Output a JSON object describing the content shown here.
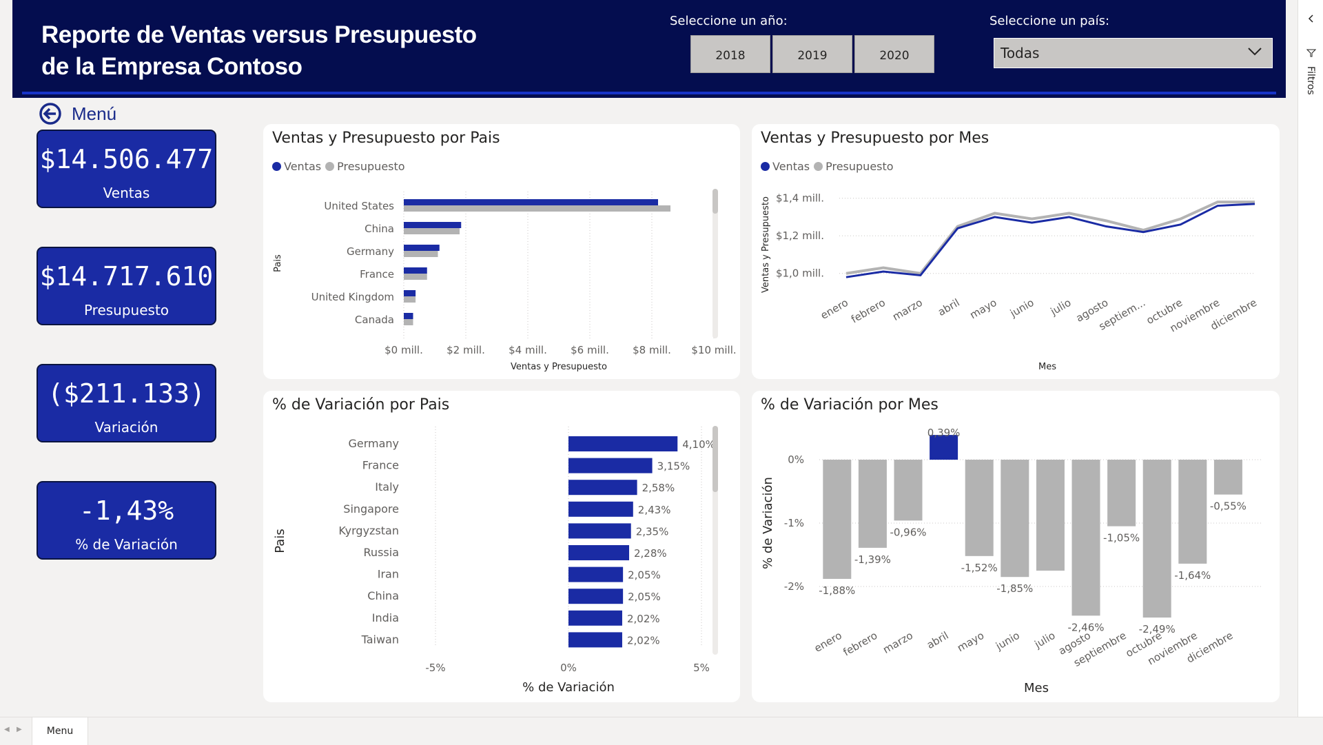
{
  "header": {
    "title_line1": "Reporte de Ventas versus Presupuesto",
    "title_line2": "de la Empresa Contoso",
    "year_label": "Seleccione un año:",
    "years": [
      "2018",
      "2019",
      "2020"
    ],
    "country_label": "Seleccione un país:",
    "country_value": "Todas"
  },
  "menu_label": "Menú",
  "kpis": [
    {
      "value": "$14.506.477",
      "label": "Ventas"
    },
    {
      "value": "$14.717.610",
      "label": "Presupuesto"
    },
    {
      "value": "($211.133)",
      "label": "Variación"
    },
    {
      "value": "-1,43%",
      "label": "% de Variación"
    }
  ],
  "colors": {
    "ventas": "#1a2ba4",
    "presupuesto": "#b3b3b3",
    "header": "#040d4f"
  },
  "chart1": {
    "title": "Ventas y Presupuesto por Pais",
    "legend_ventas": "Ventas",
    "legend_presupuesto": "Presupuesto"
  },
  "chart2": {
    "title": "Ventas y Presupuesto por Mes",
    "legend_ventas": "Ventas",
    "legend_presupuesto": "Presupuesto"
  },
  "chart3": {
    "title": "% de Variación por Pais"
  },
  "chart4": {
    "title": "% de Variación por Mes"
  },
  "filters_label": "Filtros",
  "tab_label": "Menu",
  "chart_data": [
    {
      "type": "bar",
      "orientation": "horizontal",
      "categories": [
        "United States",
        "China",
        "Germany",
        "France",
        "United Kingdom",
        "Canada"
      ],
      "series": [
        {
          "name": "Ventas",
          "values": [
            8.2,
            1.85,
            1.15,
            0.75,
            0.38,
            0.3
          ]
        },
        {
          "name": "Presupuesto",
          "values": [
            8.6,
            1.8,
            1.1,
            0.75,
            0.38,
            0.3
          ]
        }
      ],
      "xlabel": "Ventas y Presupuesto",
      "ylabel": "Pais",
      "xlim": [
        0,
        10
      ],
      "xticks": [
        "$0 mill.",
        "$2 mill.",
        "$4 mill.",
        "$6 mill.",
        "$8 mill.",
        "$10 mill."
      ]
    },
    {
      "type": "line",
      "x": [
        "enero",
        "febrero",
        "marzo",
        "abril",
        "mayo",
        "junio",
        "julio",
        "agosto",
        "septiem...",
        "octubre",
        "noviembre",
        "diciembre"
      ],
      "series": [
        {
          "name": "Ventas",
          "values": [
            0.98,
            1.01,
            0.99,
            1.24,
            1.3,
            1.27,
            1.3,
            1.25,
            1.22,
            1.26,
            1.36,
            1.37
          ]
        },
        {
          "name": "Presupuesto",
          "values": [
            1.0,
            1.03,
            1.0,
            1.25,
            1.32,
            1.29,
            1.32,
            1.28,
            1.23,
            1.29,
            1.38,
            1.38
          ]
        }
      ],
      "xlabel": "Mes",
      "ylabel": "Ventas y Presupuesto",
      "ylim": [
        0.9,
        1.45
      ],
      "yticks": [
        {
          "v": 1.0,
          "label": "$1,0 mill."
        },
        {
          "v": 1.2,
          "label": "$1,2 mill."
        },
        {
          "v": 1.4,
          "label": "$1,4 mill."
        }
      ]
    },
    {
      "type": "bar",
      "orientation": "horizontal",
      "categories": [
        "Germany",
        "France",
        "Italy",
        "Singapore",
        "Kyrgyzstan",
        "Russia",
        "Iran",
        "China",
        "India",
        "Taiwan"
      ],
      "values": [
        4.1,
        3.15,
        2.58,
        2.43,
        2.35,
        2.28,
        2.05,
        2.05,
        2.02,
        2.02
      ],
      "labels": [
        "4,10%",
        "3,15%",
        "2,58%",
        "2,43%",
        "2,35%",
        "2,28%",
        "2,05%",
        "2,05%",
        "2,02%",
        "2,02%"
      ],
      "xlabel": "% de Variación",
      "ylabel": "Pais",
      "xlim": [
        -6,
        6
      ],
      "xticks": [
        {
          "v": -5,
          "label": "-5%"
        },
        {
          "v": 0,
          "label": "0%"
        },
        {
          "v": 5,
          "label": "5%"
        }
      ]
    },
    {
      "type": "bar",
      "categories": [
        "enero",
        "febrero",
        "marzo",
        "abril",
        "mayo",
        "junio",
        "julio",
        "agosto",
        "septiembre",
        "octubre",
        "noviembre",
        "diciembre"
      ],
      "values": [
        -1.88,
        -1.39,
        -0.96,
        0.39,
        -1.52,
        -1.85,
        -1.75,
        -2.46,
        -1.05,
        -2.49,
        -1.64,
        -0.55
      ],
      "labels": [
        "-1,88%",
        "-1,39%",
        "-0,96%",
        "0,39%",
        "-1,52%",
        "-1,85%",
        "",
        "-2,46%",
        "-1,05%",
        "-2,49%",
        "-1,64%",
        "-0,55%"
      ],
      "xlabel": "Mes",
      "ylabel": "% de Variación",
      "ylim": [
        -2.6,
        0.5
      ],
      "yticks": [
        {
          "v": 0,
          "label": "0%"
        },
        {
          "v": -1,
          "label": "-1%"
        },
        {
          "v": -2,
          "label": "-2%"
        }
      ]
    }
  ]
}
